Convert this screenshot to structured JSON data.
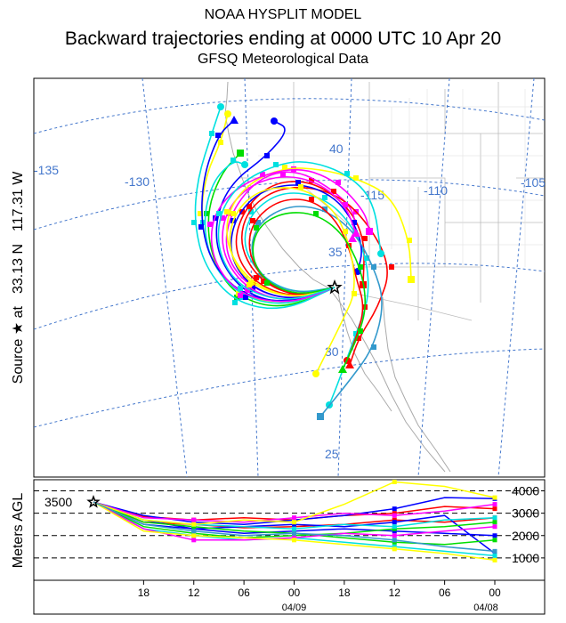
{
  "header": {
    "title": "NOAA HYSPLIT MODEL",
    "subtitle": "Backward trajectories ending at 0000 UTC 10 Apr 20",
    "data_source": "GFSQ Meteorological Data"
  },
  "side_label": {
    "source_text": "Source ★ at",
    "lat": "33.13 N",
    "lon": "117.31 W"
  },
  "map": {
    "lon_labels": [
      "-135",
      "-130",
      "-115",
      "-110",
      "-105"
    ],
    "lat_labels": [
      "40",
      "35",
      "30",
      "25"
    ]
  },
  "colors": {
    "red": "#ff0000",
    "blue": "#0000ff",
    "green": "#00dd00",
    "cyan": "#00e0e0",
    "magenta": "#ff00ff",
    "yellow": "#ffff00",
    "steelblue": "#3399cc"
  },
  "chart_data": {
    "type": "line",
    "title": "Backward trajectories ending at 0000 UTC 10 Apr 20",
    "ylabel": "Meters AGL",
    "y_ticks": [
      1000,
      2000,
      3000,
      4000
    ],
    "start_height": 3500,
    "start_label": "3500",
    "x_ticks": [
      "18",
      "12",
      "06",
      "00",
      "18",
      "12",
      "06",
      "00"
    ],
    "date_labels": [
      "04/09",
      "04/08"
    ],
    "x_hours": [
      0,
      -6,
      -12,
      -18,
      -24,
      -30,
      -36,
      -42,
      -48
    ],
    "ylim": [
      0,
      4500
    ],
    "series": [
      {
        "color": "red",
        "values": [
          3500,
          2850,
          2700,
          2800,
          2700,
          2900,
          3000,
          3300,
          3200
        ]
      },
      {
        "color": "red",
        "values": [
          3500,
          2600,
          2500,
          2350,
          2400,
          2500,
          2700,
          2600,
          2800
        ]
      },
      {
        "color": "blue",
        "values": [
          3500,
          2700,
          2300,
          2100,
          2200,
          2300,
          2200,
          2100,
          2000
        ]
      },
      {
        "color": "blue",
        "values": [
          3500,
          2900,
          2600,
          2500,
          2700,
          2900,
          3200,
          3700,
          3650
        ]
      },
      {
        "color": "blue",
        "values": [
          3500,
          2500,
          2300,
          2400,
          2500,
          2400,
          2600,
          2900,
          1200
        ]
      },
      {
        "color": "green",
        "values": [
          3500,
          2600,
          2400,
          2200,
          2100,
          1900,
          1700,
          1600,
          1800
        ]
      },
      {
        "color": "green",
        "values": [
          3500,
          2400,
          2100,
          1900,
          2000,
          2100,
          2300,
          2400,
          2600
        ]
      },
      {
        "color": "cyan",
        "values": [
          3500,
          2300,
          2000,
          1800,
          1900,
          1700,
          1500,
          1300,
          1100
        ]
      },
      {
        "color": "cyan",
        "values": [
          3500,
          2700,
          2500,
          2400,
          2300,
          2500,
          2400,
          2700,
          2800
        ]
      },
      {
        "color": "magenta",
        "values": [
          3500,
          2300,
          1800,
          1800,
          1900,
          2100,
          2000,
          2200,
          2400
        ]
      },
      {
        "color": "magenta",
        "values": [
          3500,
          2800,
          2700,
          2600,
          2800,
          3000,
          2900,
          3100,
          3400
        ]
      },
      {
        "color": "yellow",
        "values": [
          3500,
          2700,
          2500,
          2700,
          2600,
          3400,
          4400,
          4200,
          3700
        ]
      },
      {
        "color": "yellow",
        "values": [
          3500,
          2200,
          2000,
          1900,
          1800,
          1600,
          1400,
          1200,
          900
        ]
      },
      {
        "color": "steelblue",
        "values": [
          3500,
          2500,
          2200,
          2000,
          2100,
          2000,
          1800,
          1500,
          1300
        ]
      }
    ]
  }
}
